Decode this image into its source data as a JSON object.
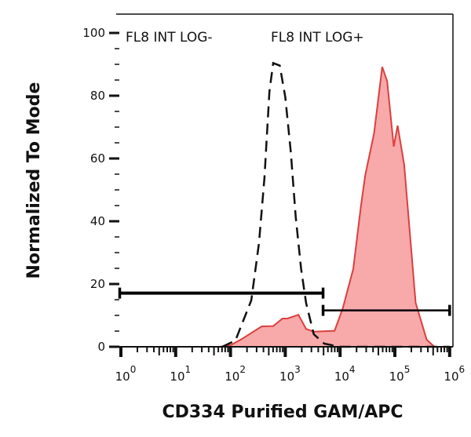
{
  "chart_data": {
    "type": "area",
    "title": "",
    "xlabel": "CD334 Purified GAM/APC",
    "ylabel": "Normalized To Mode",
    "x_scale": "log",
    "xlim_log10": [
      0,
      6
    ],
    "ylim": [
      0,
      100
    ],
    "x_ticks": [
      {
        "base": "10",
        "exp": "0",
        "log10": 0
      },
      {
        "base": "10",
        "exp": "1",
        "log10": 1
      },
      {
        "base": "10",
        "exp": "2",
        "log10": 2
      },
      {
        "base": "10",
        "exp": "3",
        "log10": 3
      },
      {
        "base": "10",
        "exp": "4",
        "log10": 4
      },
      {
        "base": "10",
        "exp": "5",
        "log10": 5
      },
      {
        "base": "10",
        "exp": "6",
        "log10": 6
      }
    ],
    "y_ticks": [
      "0",
      "20",
      "40",
      "60",
      "80",
      "100"
    ],
    "grid": false,
    "colors": {
      "filled_fill": "#f8a9a9",
      "filled_line": "#d9403f",
      "control_line": "#111111",
      "gate": "#000000"
    },
    "series": [
      {
        "style": "filled",
        "log10_x": [
          0,
          1.8,
          2.0,
          2.19,
          2.57,
          2.78,
          2.95,
          3.04,
          3.24,
          3.38,
          3.52,
          3.9,
          4.05,
          4.24,
          4.38,
          4.46,
          4.62,
          4.77,
          4.86,
          4.98,
          5.05,
          5.17,
          5.38,
          5.58,
          5.72,
          6.0
        ],
        "y": [
          0,
          0,
          0.5,
          2.3,
          6.5,
          6.6,
          9,
          9,
          10.2,
          5.7,
          4.8,
          5.1,
          12.3,
          24.8,
          44.7,
          54.7,
          68,
          89.2,
          84.6,
          63.8,
          70.5,
          58,
          14,
          2.3,
          0,
          0
        ]
      },
      {
        "style": "dashed",
        "log10_x": [
          1.85,
          2.09,
          2.38,
          2.52,
          2.62,
          2.71,
          2.78,
          2.9,
          3.0,
          3.1,
          3.19,
          3.29,
          3.38,
          3.52,
          3.71,
          4.0,
          6.0
        ],
        "y": [
          0,
          2,
          14.8,
          33,
          53.9,
          81.3,
          90.4,
          89.6,
          79.6,
          62.2,
          41.4,
          24.8,
          14,
          4,
          1,
          0,
          0
        ]
      }
    ],
    "gates": [
      {
        "label": "FL8 INT LOG-",
        "log10_x": [
          0,
          3.69
        ],
        "y": 17.1
      },
      {
        "label": "FL8 INT LOG+",
        "log10_x": [
          3.69,
          6.0
        ],
        "y": 11.6
      }
    ]
  }
}
